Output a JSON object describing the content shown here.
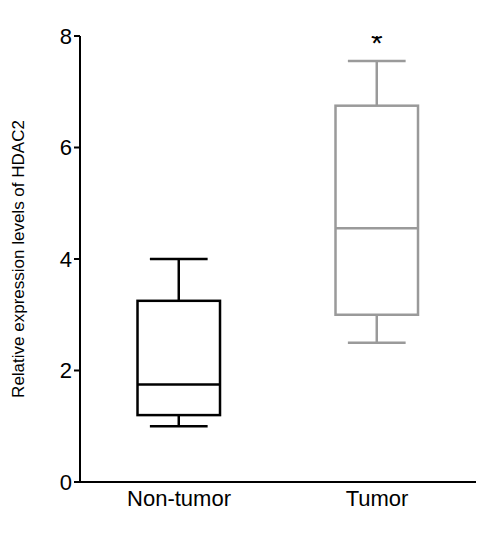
{
  "chart_data": {
    "type": "box",
    "y_label": "Relative expression levels of HDAC2",
    "categories": [
      "Non-tumor",
      "Tumor"
    ],
    "boxes": [
      {
        "min": 1.0,
        "q1": 1.2,
        "median": 1.75,
        "q3": 3.25,
        "max": 4.0
      },
      {
        "min": 2.5,
        "q1": 3.0,
        "median": 4.55,
        "q3": 6.75,
        "max": 7.55
      }
    ],
    "colors": [
      "#000000",
      "#9a9a9a"
    ],
    "ylim": [
      0,
      8
    ],
    "yticks": [
      0,
      2,
      4,
      6,
      8
    ],
    "annotations": [
      {
        "text": "*",
        "category": "Tumor"
      }
    ]
  }
}
